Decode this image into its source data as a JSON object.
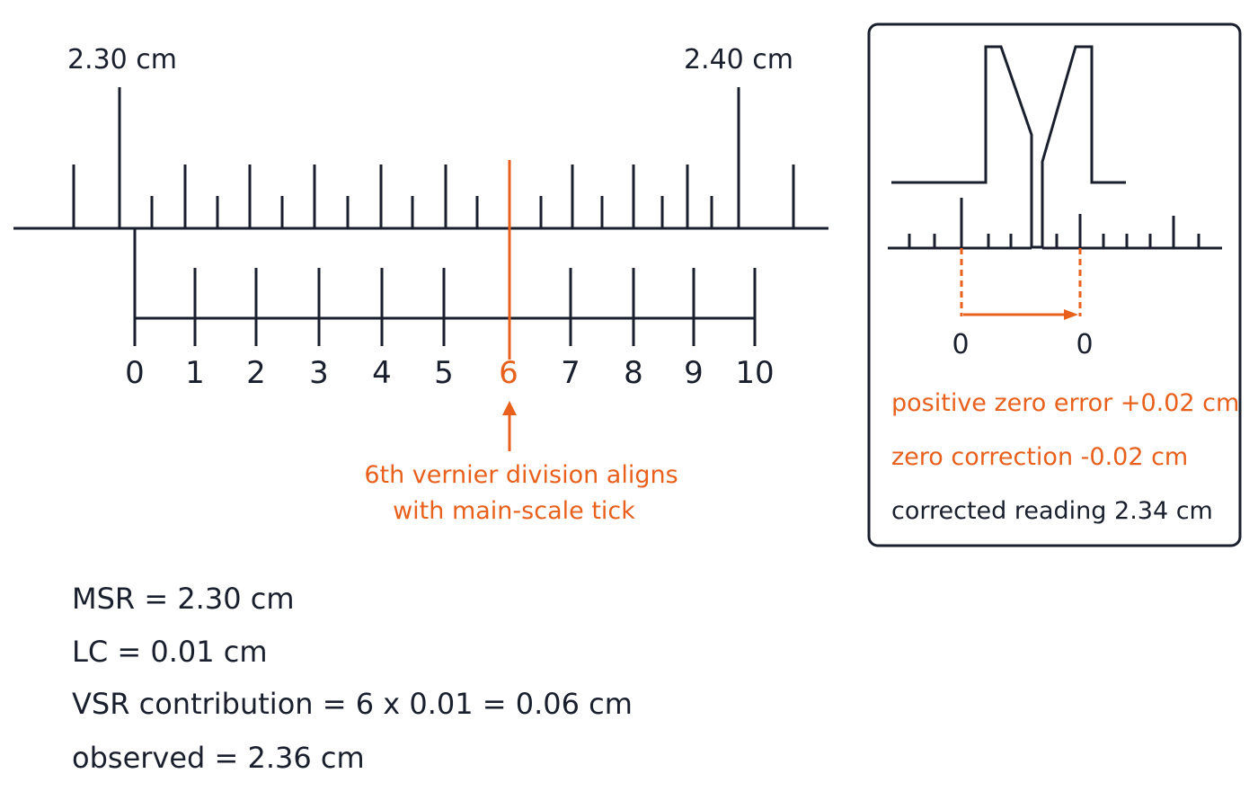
{
  "main_scale": {
    "labels": [
      "2.30 cm",
      "2.40 cm"
    ]
  },
  "vernier": {
    "labels": [
      "0",
      "1",
      "2",
      "3",
      "4",
      "5",
      "6",
      "7",
      "8",
      "9",
      "10"
    ]
  },
  "annotation": {
    "lines": [
      "6th vernier division aligns",
      "with main-scale tick"
    ]
  },
  "inset": {
    "zero_labels": [
      "0",
      "0"
    ],
    "notes": [
      "positive zero error +0.02 cm",
      "zero correction -0.02 cm",
      "corrected reading 2.34 cm"
    ]
  },
  "calculation": {
    "lines": [
      "MSR = 2.30 cm",
      "LC = 0.01 cm",
      "VSR contribution = 6 x 0.01 = 0.06 cm",
      "observed = 2.36 cm"
    ]
  }
}
